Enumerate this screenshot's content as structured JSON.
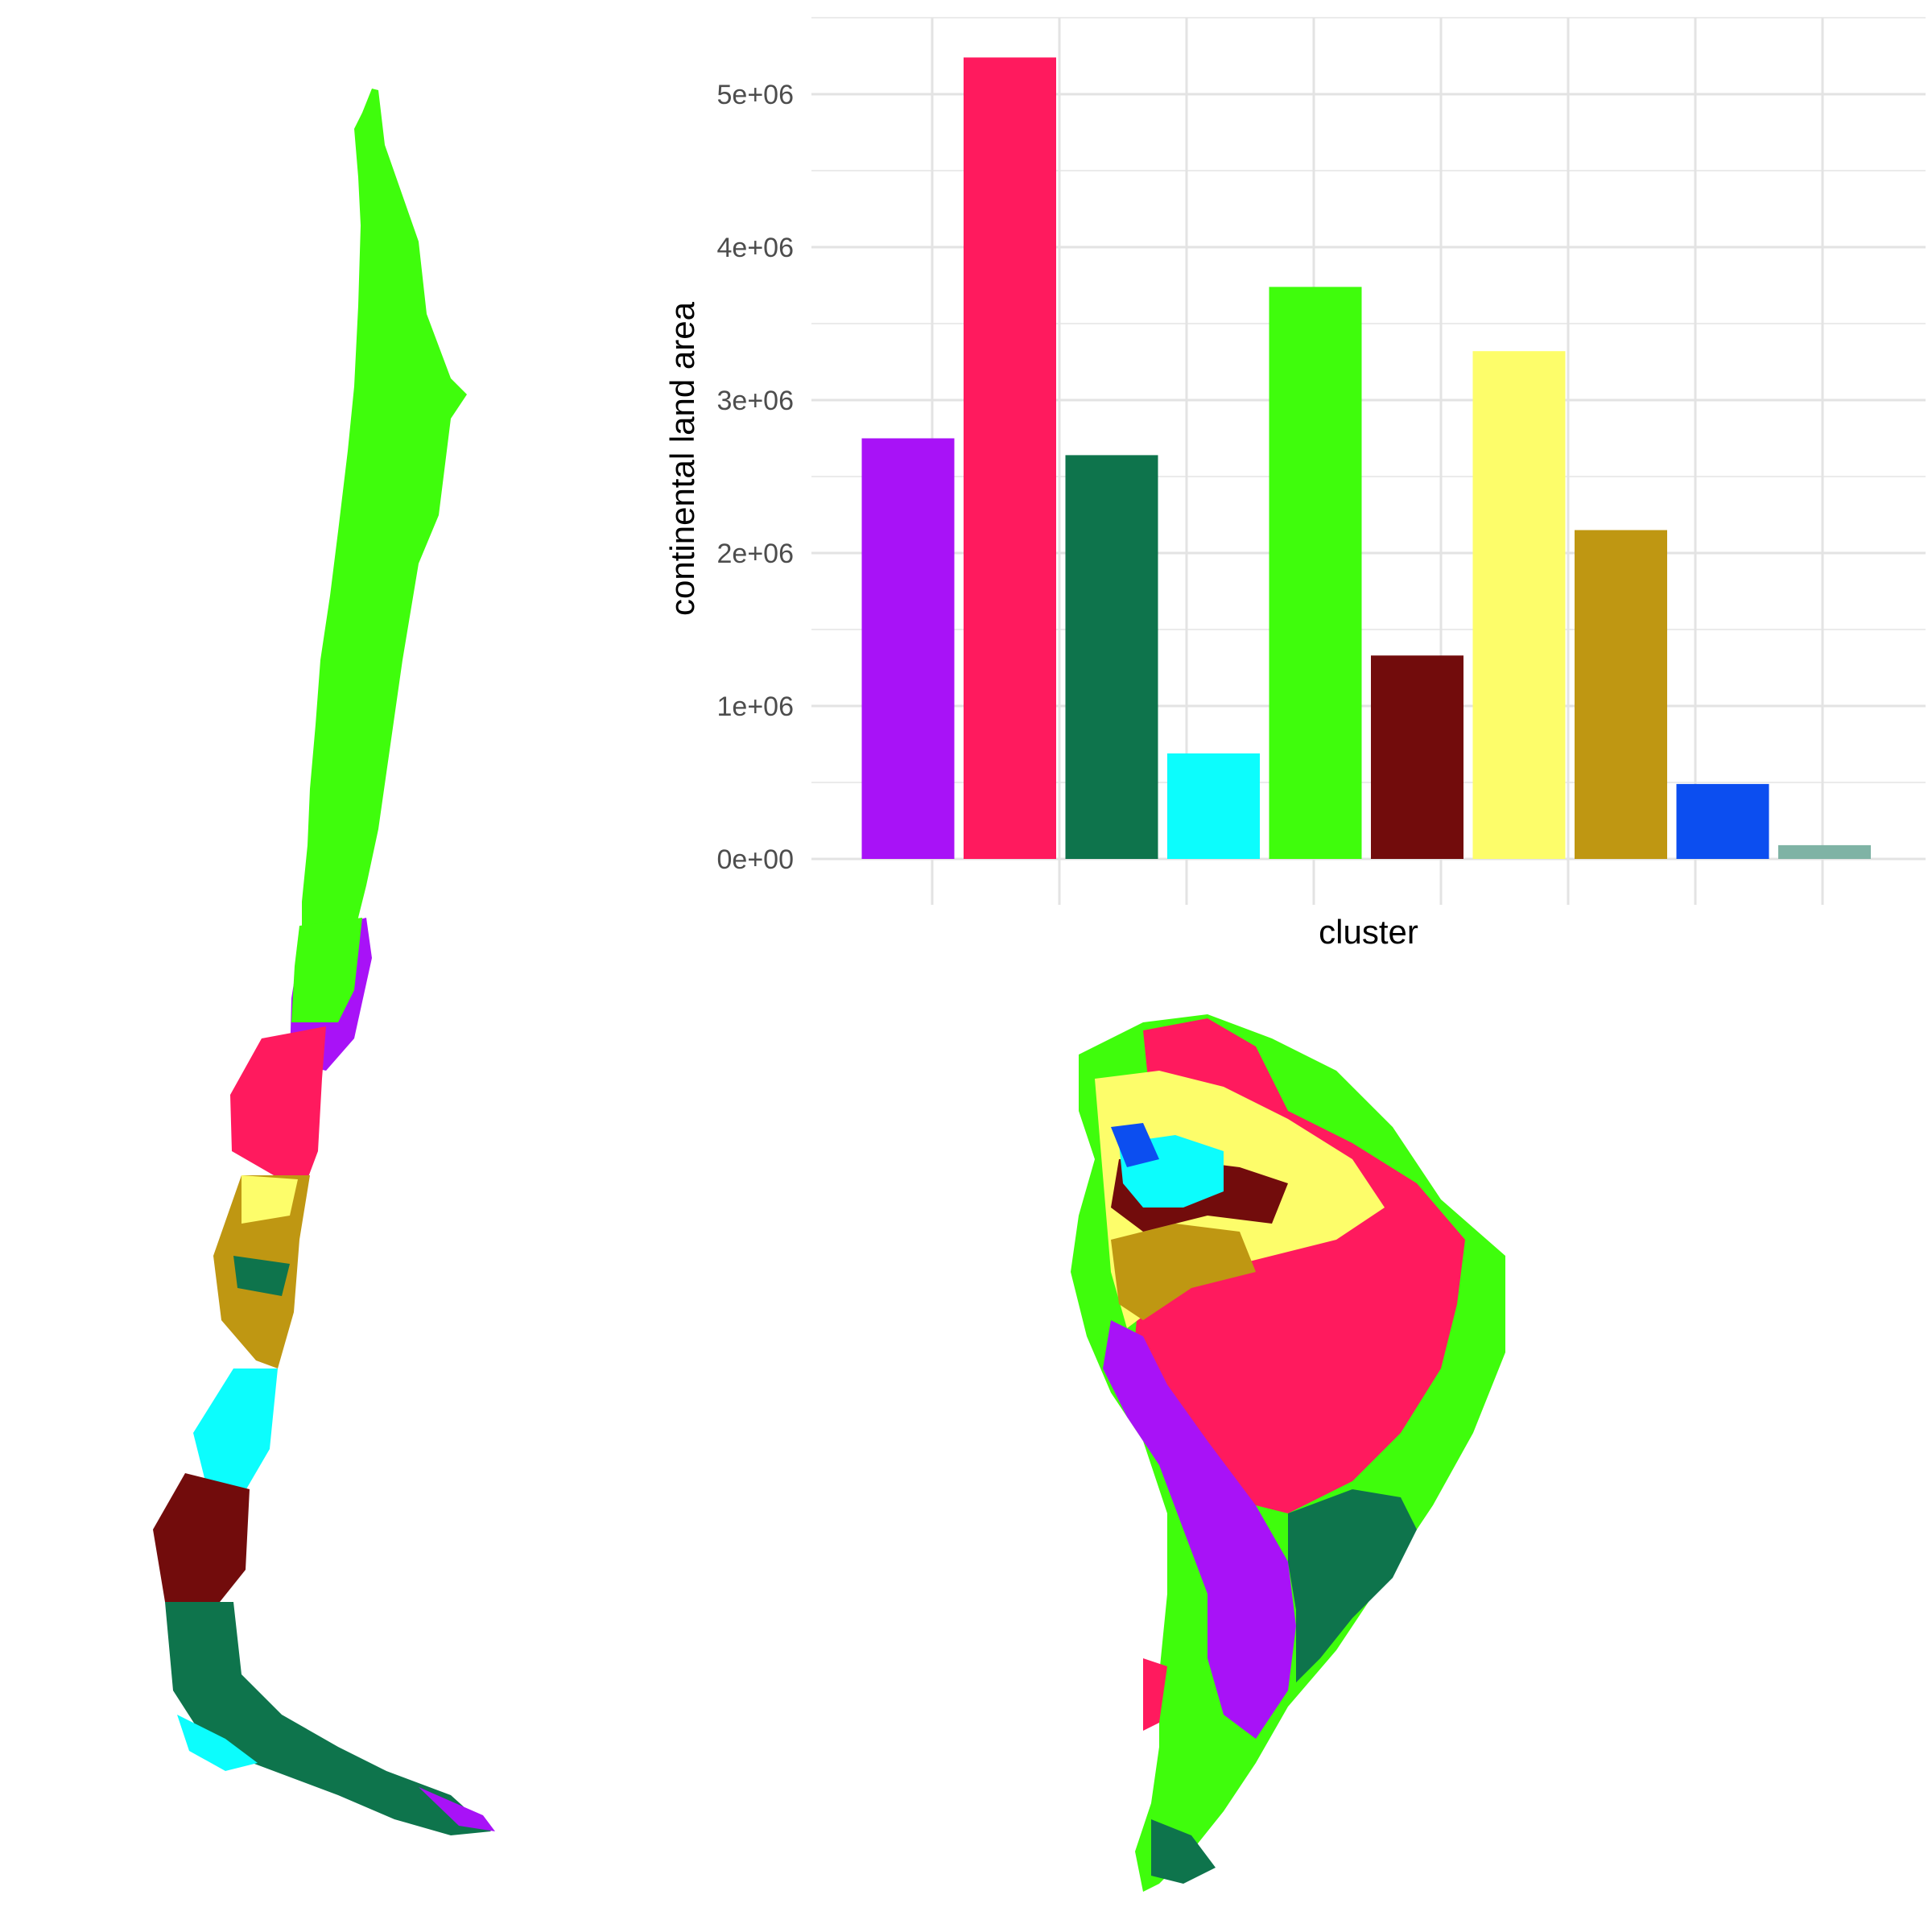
{
  "chart_data": [
    {
      "type": "bar",
      "xlabel": "cluster",
      "ylabel": "continental land area",
      "ylim": [
        0,
        5300000
      ],
      "y_ticks": [
        0,
        1000000,
        2000000,
        3000000,
        4000000,
        5000000
      ],
      "y_tick_labels": [
        "0e+00",
        "1e+06",
        "2e+06",
        "3e+06",
        "4e+06",
        "5e+06"
      ],
      "x_tick_labels_shown": false,
      "grid": true,
      "legend": "none",
      "bars": [
        {
          "value": 2750000,
          "color": "#a812f7"
        },
        {
          "value": 5240000,
          "color": "#ff1a5e"
        },
        {
          "value": 2640000,
          "color": "#0e744c"
        },
        {
          "value": 690000,
          "color": "#0cfdfd"
        },
        {
          "value": 3740000,
          "color": "#3ffd0c"
        },
        {
          "value": 1330000,
          "color": "#720c0c"
        },
        {
          "value": 3320000,
          "color": "#fdfd6a"
        },
        {
          "value": 2150000,
          "color": "#bf9712"
        },
        {
          "value": 490000,
          "color": "#0c4ef0"
        },
        {
          "value": 90000,
          "color": "#7fb3a5"
        }
      ]
    },
    {
      "type": "map",
      "region": "Chile",
      "colors": [
        "#3ffd0c",
        "#a812f7",
        "#ff1a5e",
        "#bf9712",
        "#fdfd6a",
        "#0e744c",
        "#0cfdfd",
        "#720c0c"
      ]
    },
    {
      "type": "map",
      "region": "South America",
      "colors": [
        "#ff1a5e",
        "#fdfd6a",
        "#bf9712",
        "#720c0c",
        "#0cfdfd",
        "#0c4ef0",
        "#a812f7",
        "#0e744c",
        "#3ffd0c",
        "#7fb3a5"
      ]
    }
  ]
}
